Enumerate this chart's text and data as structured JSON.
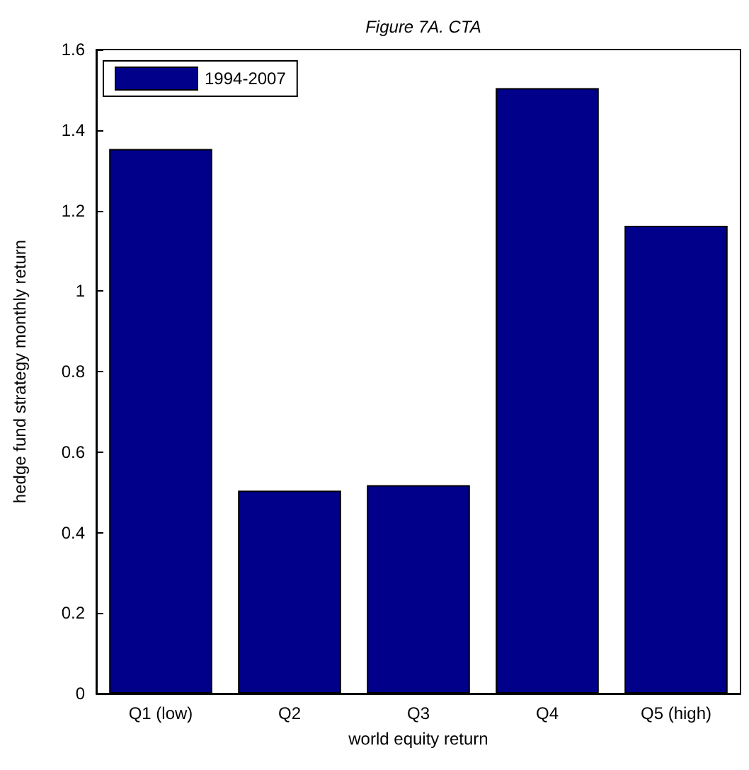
{
  "chart_data": {
    "type": "bar",
    "title": "Figure 7A. CTA",
    "xlabel": "world equity return",
    "ylabel": "hedge fund strategy monthly return",
    "categories": [
      "Q1 (low)",
      "Q2",
      "Q3",
      "Q4",
      "Q5 (high)"
    ],
    "series": [
      {
        "name": "1994-2007",
        "color": "#00008b",
        "values": [
          1.353,
          0.504,
          0.518,
          1.504,
          1.162
        ]
      }
    ],
    "ylim": [
      0,
      1.6
    ],
    "yticks": [
      0,
      0.2,
      0.4,
      0.6,
      0.8,
      1,
      1.2,
      1.4,
      1.6
    ],
    "grid": false,
    "legend": "top left"
  }
}
